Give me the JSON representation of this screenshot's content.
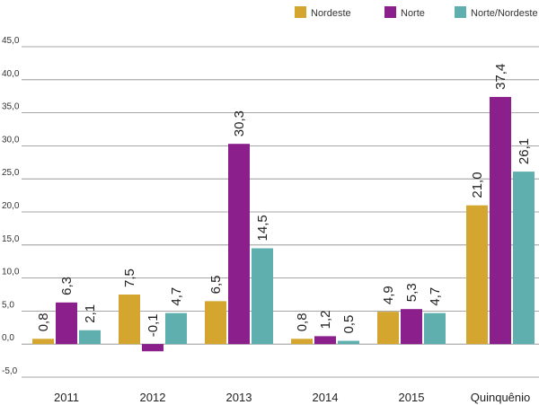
{
  "chart_data": {
    "type": "bar",
    "categories": [
      "2011",
      "2012",
      "2013",
      "2014",
      "2015",
      "Quinquênio"
    ],
    "series": [
      {
        "name": "Nordeste",
        "color": "#D4A62F",
        "values": [
          0.8,
          7.5,
          6.5,
          0.8,
          4.9,
          21.0
        ],
        "labels": [
          "0,8",
          "7,5",
          "6,5",
          "0,8",
          "4,9",
          "21,0"
        ]
      },
      {
        "name": "Norte",
        "color": "#8B1F8C",
        "values": [
          6.3,
          -0.1,
          30.3,
          1.2,
          5.3,
          37.4
        ],
        "labels": [
          "6,3",
          "-0,1",
          "30,3",
          "1,2",
          "5,3",
          "37,4"
        ]
      },
      {
        "name": "Norte/Nordeste",
        "color": "#5FAFAF",
        "values": [
          2.1,
          4.7,
          14.5,
          0.5,
          4.7,
          26.1
        ],
        "labels": [
          "2,1",
          "4,7",
          "14,5",
          "0,5",
          "4,7",
          "26,1"
        ]
      }
    ],
    "yticks": [
      -5,
      0,
      5,
      10,
      15,
      20,
      25,
      30,
      35,
      40,
      45
    ],
    "ytick_labels": [
      "-5,0",
      "0,0",
      "5,0",
      "10,0",
      "15,0",
      "20,0",
      "25,0",
      "30,0",
      "35,0",
      "40,0",
      "45,0"
    ],
    "ylim": [
      -5,
      45
    ],
    "grid": true,
    "legend": "top-right"
  }
}
